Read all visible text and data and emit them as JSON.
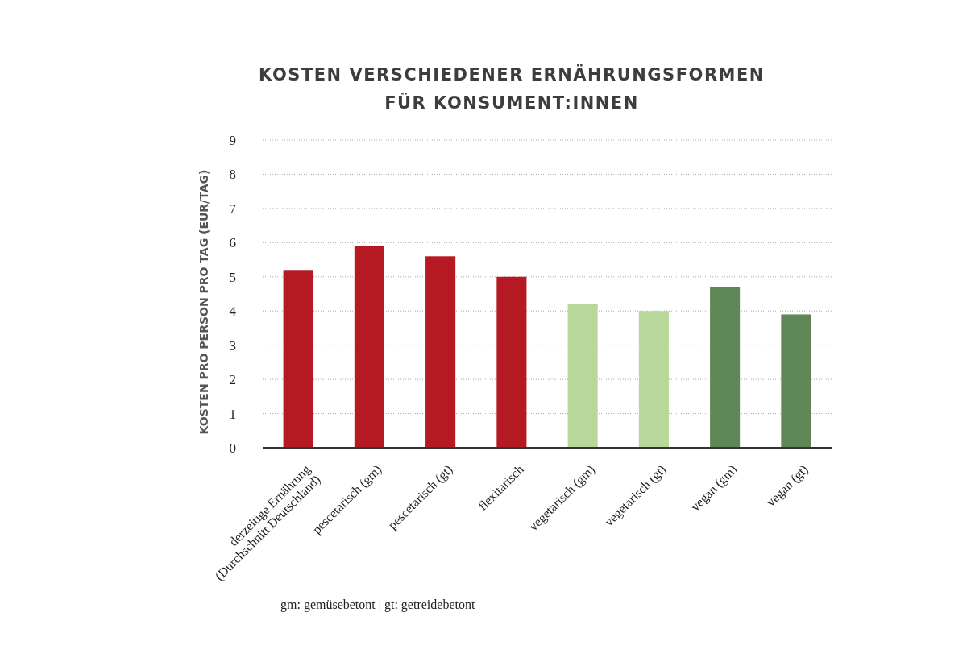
{
  "chart_data": {
    "type": "bar",
    "title": "KOSTEN VERSCHIEDENER ERNÄHRUNGSFORMEN\nFÜR KONSUMENT:INNEN",
    "ylabel": "KOSTEN PRO PERSON PRO TAG (EUR/TAG)",
    "categories": [
      "derzeitige Ernährung\n(Durchschnitt Deutschland)",
      "pescetarisch (gm)",
      "pescetarisch (gt)",
      "flexitarisch",
      "vegetarisch (gm)",
      "vegetarisch (gt)",
      "vegan (gm)",
      "vegan (gt)"
    ],
    "values": [
      5.2,
      5.9,
      5.6,
      5.0,
      4.2,
      4.0,
      4.7,
      3.9
    ],
    "colors": [
      "#b51a22",
      "#b51a22",
      "#b51a22",
      "#b51a22",
      "#b8d79a",
      "#b8d79a",
      "#5f8656",
      "#5f8656"
    ],
    "ylim": [
      0,
      9
    ],
    "yticks": [
      0,
      1,
      2,
      3,
      4,
      5,
      6,
      7,
      8,
      9
    ],
    "grid": "y",
    "annotations": [
      "gm: gemüsebetont | gt: getreidebetont"
    ]
  }
}
